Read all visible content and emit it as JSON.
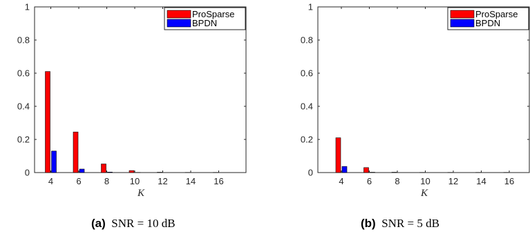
{
  "chart_data": [
    {
      "type": "bar",
      "categories": [
        "4",
        "6",
        "8",
        "10",
        "12",
        "14",
        "16"
      ],
      "series": [
        {
          "name": "ProSparse",
          "values": [
            0.61,
            0.245,
            0.052,
            0.012,
            0.002,
            0.001,
            0.001
          ],
          "color": "#ff0000"
        },
        {
          "name": "BPDN",
          "values": [
            0.13,
            0.021,
            0.003,
            0.001,
            0.0,
            0.0,
            0.0
          ],
          "color": "#0000ff"
        }
      ],
      "xlabel": "K",
      "ylabel": "",
      "ylim": [
        0,
        1
      ],
      "yticks": [
        "0",
        "0.2",
        "0.4",
        "0.6",
        "0.8",
        "1"
      ],
      "legend": "top-right",
      "grid": false,
      "caption_label": "(a)",
      "caption_text": "SNR = 10 dB"
    },
    {
      "type": "bar",
      "categories": [
        "4",
        "6",
        "8",
        "10",
        "12",
        "14",
        "16"
      ],
      "series": [
        {
          "name": "ProSparse",
          "values": [
            0.21,
            0.03,
            0.002,
            0.001,
            0.001,
            0.001,
            0.001
          ],
          "color": "#ff0000"
        },
        {
          "name": "BPDN",
          "values": [
            0.037,
            0.002,
            0.0,
            0.0,
            0.0,
            0.0,
            0.0
          ],
          "color": "#0000ff"
        }
      ],
      "xlabel": "K",
      "ylabel": "",
      "ylim": [
        0,
        1
      ],
      "yticks": [
        "0",
        "0.2",
        "0.4",
        "0.6",
        "0.8",
        "1"
      ],
      "legend": "top-right",
      "grid": false,
      "caption_label": "(b)",
      "caption_text": "SNR = 5 dB"
    }
  ]
}
